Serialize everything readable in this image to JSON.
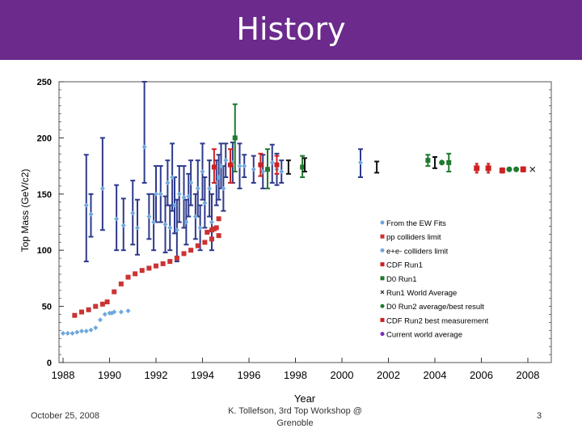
{
  "slide": {
    "title": "History",
    "footer_date": "October 25, 2008",
    "footer_center": "K. Tollefson, 3rd Top Workshop @ Grenoble",
    "slide_number": "3"
  },
  "colors": {
    "title_bar": "#6b2a8c",
    "ew_fits": "#6fa8dc",
    "errorbar_navy": "#2e3a8c",
    "pp_limit": "#cc3333",
    "cdf_run1": "#cc2222",
    "d0_run1": "#1f7a2e",
    "world_avg": "#111111",
    "d0_run2": "#1f7a2e",
    "cdf_run2": "#cc2222",
    "current_avg": "#7b2bb8"
  },
  "chart_data": {
    "type": "scatter",
    "xlabel": "Year",
    "ylabel": "Top Mass (GeV/c2)",
    "xlim": [
      1988,
      2008
    ],
    "ylim": [
      0,
      250
    ],
    "xticks": [
      "1988",
      "1990",
      "1992",
      "1994",
      "1996",
      "1998",
      "2000",
      "2002",
      "2004",
      "2006",
      "2008"
    ],
    "yticks": [
      "0",
      "50",
      "100",
      "150",
      "200",
      "250"
    ],
    "legend": [
      {
        "key": "ew_fits",
        "label": "From the EW Fits"
      },
      {
        "key": "pp_limit",
        "label": "pp colliders limit"
      },
      {
        "key": "ee_limit",
        "label": "e+e- colliders limit"
      },
      {
        "key": "cdf_run1",
        "label": "CDF Run1"
      },
      {
        "key": "d0_run1",
        "label": "D0 Run1"
      },
      {
        "key": "world_avg",
        "label": "Run1 World Average"
      },
      {
        "key": "d0_run2",
        "label": "D0 Run2 average/best result"
      },
      {
        "key": "cdf_run2",
        "label": "CDF Run2 best measurement"
      },
      {
        "key": "current_avg",
        "label": "Current world average"
      }
    ],
    "series": {
      "ee_limit": {
        "name": "e+e- colliders limit",
        "x": [
          1988.0,
          1988.2,
          1988.4,
          1988.6,
          1988.8,
          1989.0,
          1989.2,
          1989.4,
          1989.6,
          1989.8,
          1990.0,
          1990.1,
          1990.2,
          1990.5,
          1990.8
        ],
        "y": [
          26,
          26,
          26,
          27,
          28,
          28,
          29,
          31,
          38,
          43,
          44,
          44,
          45,
          45,
          46
        ]
      },
      "pp_limit": {
        "name": "pp colliders limit",
        "x": [
          1988.5,
          1988.8,
          1989.1,
          1989.4,
          1989.7,
          1989.9,
          1990.2,
          1990.5,
          1990.8,
          1991.1,
          1991.4,
          1991.7,
          1992.0,
          1992.3,
          1992.6,
          1992.9,
          1993.2,
          1993.5,
          1993.8,
          1994.1,
          1994.4,
          1994.7
        ],
        "y": [
          42,
          45,
          47,
          50,
          52,
          54,
          63,
          70,
          76,
          79,
          82,
          84,
          86,
          88,
          90,
          93,
          97,
          100,
          104,
          107,
          110,
          113
        ]
      },
      "pp_limit_late": {
        "name": "pp colliders limit",
        "x": [
          1994.2,
          1994.4,
          1994.5,
          1994.6,
          1994.7
        ],
        "y": [
          116,
          118,
          119,
          120,
          128
        ]
      },
      "ew_fits": {
        "name": "From the EW Fits",
        "points": [
          {
            "x": 1989.0,
            "y": 140,
            "lo": 90,
            "hi": 185
          },
          {
            "x": 1989.2,
            "y": 132,
            "lo": 112,
            "hi": 150
          },
          {
            "x": 1989.7,
            "y": 155,
            "lo": 118,
            "hi": 200
          },
          {
            "x": 1990.3,
            "y": 128,
            "lo": 100,
            "hi": 158
          },
          {
            "x": 1990.6,
            "y": 122,
            "lo": 100,
            "hi": 146
          },
          {
            "x": 1991.0,
            "y": 133,
            "lo": 105,
            "hi": 162
          },
          {
            "x": 1991.2,
            "y": 120,
            "lo": 96,
            "hi": 145
          },
          {
            "x": 1991.5,
            "y": 192,
            "lo": 160,
            "hi": 250
          },
          {
            "x": 1991.7,
            "y": 130,
            "lo": 110,
            "hi": 150
          },
          {
            "x": 1991.9,
            "y": 125,
            "lo": 100,
            "hi": 150
          },
          {
            "x": 1992.0,
            "y": 150,
            "lo": 125,
            "hi": 175
          },
          {
            "x": 1992.2,
            "y": 150,
            "lo": 125,
            "hi": 175
          },
          {
            "x": 1992.4,
            "y": 123,
            "lo": 98,
            "hi": 148
          },
          {
            "x": 1992.5,
            "y": 160,
            "lo": 140,
            "hi": 180
          },
          {
            "x": 1992.6,
            "y": 120,
            "lo": 100,
            "hi": 140
          },
          {
            "x": 1992.7,
            "y": 165,
            "lo": 135,
            "hi": 195
          },
          {
            "x": 1992.8,
            "y": 140,
            "lo": 115,
            "hi": 165
          },
          {
            "x": 1992.9,
            "y": 118,
            "lo": 90,
            "hi": 145
          },
          {
            "x": 1993.0,
            "y": 150,
            "lo": 125,
            "hi": 175
          },
          {
            "x": 1993.2,
            "y": 147,
            "lo": 120,
            "hi": 175
          },
          {
            "x": 1993.3,
            "y": 125,
            "lo": 105,
            "hi": 145
          },
          {
            "x": 1993.4,
            "y": 148,
            "lo": 130,
            "hi": 168
          },
          {
            "x": 1993.5,
            "y": 160,
            "lo": 140,
            "hi": 180
          },
          {
            "x": 1993.7,
            "y": 130,
            "lo": 110,
            "hi": 150
          },
          {
            "x": 1993.8,
            "y": 155,
            "lo": 130,
            "hi": 180
          },
          {
            "x": 1993.9,
            "y": 120,
            "lo": 100,
            "hi": 140
          },
          {
            "x": 1994.0,
            "y": 170,
            "lo": 145,
            "hi": 195
          },
          {
            "x": 1994.1,
            "y": 142,
            "lo": 120,
            "hi": 165
          },
          {
            "x": 1994.3,
            "y": 155,
            "lo": 130,
            "hi": 180
          },
          {
            "x": 1994.4,
            "y": 125,
            "lo": 100,
            "hi": 150
          },
          {
            "x": 1994.6,
            "y": 160,
            "lo": 140,
            "hi": 180
          },
          {
            "x": 1994.7,
            "y": 165,
            "lo": 145,
            "hi": 185
          },
          {
            "x": 1994.8,
            "y": 175,
            "lo": 155,
            "hi": 195
          },
          {
            "x": 1994.9,
            "y": 155,
            "lo": 135,
            "hi": 175
          },
          {
            "x": 1995.0,
            "y": 180,
            "lo": 165,
            "hi": 195
          },
          {
            "x": 1995.3,
            "y": 178,
            "lo": 160,
            "hi": 196
          },
          {
            "x": 1995.6,
            "y": 175,
            "lo": 155,
            "hi": 195
          },
          {
            "x": 1995.8,
            "y": 175,
            "lo": 165,
            "hi": 185
          },
          {
            "x": 1996.2,
            "y": 172,
            "lo": 160,
            "hi": 184
          },
          {
            "x": 1996.6,
            "y": 170,
            "lo": 155,
            "hi": 185
          },
          {
            "x": 1997.0,
            "y": 178,
            "lo": 160,
            "hi": 194
          },
          {
            "x": 1997.2,
            "y": 172,
            "lo": 158,
            "hi": 186
          },
          {
            "x": 1997.4,
            "y": 170,
            "lo": 160,
            "hi": 180
          },
          {
            "x": 2000.8,
            "y": 178,
            "lo": 165,
            "hi": 190
          }
        ]
      },
      "cdf_run1": {
        "name": "CDF Run1",
        "points": [
          {
            "x": 1994.5,
            "y": 174,
            "lo": 160,
            "hi": 190
          },
          {
            "x": 1995.2,
            "y": 176,
            "lo": 160,
            "hi": 190
          },
          {
            "x": 1996.5,
            "y": 176,
            "lo": 166,
            "hi": 186
          },
          {
            "x": 1997.2,
            "y": 176,
            "lo": 168,
            "hi": 184
          }
        ]
      },
      "d0_run1": {
        "name": "D0 Run1",
        "points": [
          {
            "x": 1995.4,
            "y": 200,
            "lo": 170,
            "hi": 230
          },
          {
            "x": 1996.8,
            "y": 172,
            "lo": 155,
            "hi": 190
          },
          {
            "x": 1998.3,
            "y": 174,
            "lo": 165,
            "hi": 184
          },
          {
            "x": 2003.7,
            "y": 180,
            "lo": 175,
            "hi": 185
          },
          {
            "x": 2004.6,
            "y": 178,
            "lo": 170,
            "hi": 186
          }
        ]
      },
      "world_avg": {
        "name": "Run1 World Average",
        "points": [
          {
            "x": 1997.7,
            "y": 174,
            "lo": 168,
            "hi": 180
          },
          {
            "x": 1998.4,
            "y": 176,
            "lo": 170,
            "hi": 182
          },
          {
            "x": 2001.5,
            "y": 174,
            "lo": 169,
            "hi": 179
          },
          {
            "x": 2004.0,
            "y": 178,
            "lo": 173,
            "hi": 183
          }
        ]
      },
      "d0_run2": {
        "name": "D0 Run2 average/best result",
        "points": [
          {
            "x": 2004.3,
            "y": 178
          },
          {
            "x": 2007.2,
            "y": 172
          },
          {
            "x": 2007.5,
            "y": 172
          }
        ]
      },
      "cdf_run2": {
        "name": "CDF Run2 best measurement",
        "points": [
          {
            "x": 2005.8,
            "y": 173,
            "lo": 169,
            "hi": 177
          },
          {
            "x": 2006.3,
            "y": 173,
            "lo": 169,
            "hi": 177
          },
          {
            "x": 2006.9,
            "y": 171,
            "lo": 169,
            "hi": 173
          },
          {
            "x": 2007.8,
            "y": 172,
            "lo": 170,
            "hi": 174
          }
        ]
      },
      "current_avg": {
        "name": "Current world average",
        "points": [
          {
            "x": 2008.2,
            "y": 172,
            "lo": 171,
            "hi": 173
          }
        ]
      }
    }
  }
}
